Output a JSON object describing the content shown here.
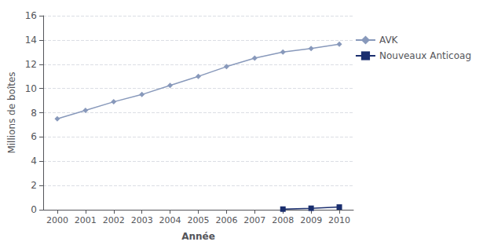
{
  "chart_data": {
    "type": "line",
    "xlabel": "Année",
    "ylabel": "Millions de boîtes",
    "x": [
      2000,
      2001,
      2002,
      2003,
      2004,
      2005,
      2006,
      2007,
      2008,
      2009,
      2010
    ],
    "series": [
      {
        "name": "AVK",
        "color": "#8899bb",
        "marker": "diamond",
        "values": [
          7.5,
          8.2,
          8.9,
          9.5,
          10.25,
          11.0,
          11.8,
          12.5,
          13.0,
          13.3,
          13.65
        ]
      },
      {
        "name": "Nouveaux Anticoag",
        "color": "#1a2e6e",
        "marker": "square",
        "values": [
          null,
          null,
          null,
          null,
          null,
          null,
          null,
          null,
          0.05,
          0.12,
          0.22
        ]
      }
    ],
    "xlim": [
      1999.5,
      2010.5
    ],
    "xticks": [
      2000,
      2001,
      2002,
      2003,
      2004,
      2005,
      2006,
      2007,
      2008,
      2009,
      2010
    ],
    "ylim": [
      0,
      16
    ],
    "yticks": [
      0,
      2,
      4,
      6,
      8,
      10,
      12,
      14,
      16
    ],
    "grid": true,
    "legend": "right"
  }
}
